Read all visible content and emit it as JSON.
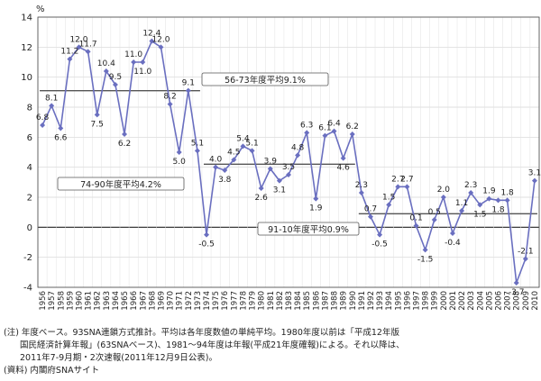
{
  "chart_data": {
    "type": "line",
    "ylabel": "%",
    "ylim": [
      -4,
      14
    ],
    "yticks": [
      -4,
      -2,
      0,
      2,
      4,
      6,
      8,
      10,
      12,
      14
    ],
    "grid": true,
    "x": [
      "1956",
      "1957",
      "1958",
      "1959",
      "1960",
      "1961",
      "1962",
      "1963",
      "1964",
      "1965",
      "1966",
      "1967",
      "1968",
      "1969",
      "1970",
      "1971",
      "1972",
      "1973",
      "1974",
      "1975",
      "1976",
      "1977",
      "1978",
      "1979",
      "1980",
      "1981",
      "1982",
      "1983",
      "1984",
      "1985",
      "1986",
      "1987",
      "1988",
      "1989",
      "1990",
      "1991",
      "1992",
      "1993",
      "1994",
      "1995",
      "1996",
      "1997",
      "1998",
      "1999",
      "2000",
      "2001",
      "2002",
      "2003",
      "2004",
      "2005",
      "2006",
      "2007",
      "2008",
      "2009",
      "2010"
    ],
    "values": [
      6.8,
      8.1,
      6.6,
      11.2,
      12.0,
      11.7,
      7.5,
      10.4,
      9.5,
      6.2,
      11.0,
      11.0,
      12.4,
      12.0,
      8.2,
      5.0,
      9.1,
      5.1,
      -0.5,
      4.0,
      3.8,
      4.5,
      5.4,
      5.1,
      2.6,
      3.9,
      3.1,
      3.5,
      4.8,
      6.3,
      1.9,
      6.1,
      6.4,
      4.6,
      6.2,
      2.3,
      0.7,
      -0.5,
      1.5,
      2.7,
      2.7,
      0.1,
      -1.5,
      0.5,
      2.0,
      -0.4,
      1.1,
      2.3,
      1.5,
      1.9,
      1.8,
      1.8,
      -3.7,
      -2.1,
      3.1
    ],
    "data_labels": [
      "6.8",
      "8.1",
      "6.6",
      "11.2",
      "12.0",
      "11.7",
      "7.5",
      "10.4",
      "9.5",
      "6.2",
      "11.0",
      "11.0",
      "12.4",
      "12.0",
      "8.2",
      "5.0",
      "9.1",
      "5.1",
      "-0.5",
      "4.0",
      "3.8",
      "4.5",
      "5.4",
      "5.1",
      "2.6",
      "3.9",
      "3.1",
      "3.5",
      "4.8",
      "6.3",
      "1.9",
      "6.1",
      "6.4",
      "4.6",
      "6.2",
      "2.3",
      "0.7",
      "-0.5",
      "1.5",
      "2.7",
      "2.7",
      "0.1",
      "-1.5",
      "0.5",
      "2.0",
      "-0.4",
      "1.1",
      "2.3",
      "1.5",
      "1.9",
      "1.8",
      "1.8",
      "-3.7",
      "-2.1",
      "3.1"
    ],
    "averages": [
      {
        "label": "56-73年度平均9.1%",
        "value": 9.1,
        "from": "1956",
        "to": "1973"
      },
      {
        "label": "74-90年度平均4.2%",
        "value": 4.2,
        "from": "1974",
        "to": "1990"
      },
      {
        "label": "91-10年度平均0.9%",
        "value": 0.9,
        "from": "1991",
        "to": "2010"
      }
    ],
    "colors": {
      "line": "#6a6fc0",
      "marker": "#6a6fc0",
      "avg": "#555555",
      "grid": "#d4d4d4"
    }
  },
  "notes": [
    "(注) 年度ベース。93SNA連鎖方式推計。平均は各年度数値の単純平均。1980年度以前は「平成12年版",
    "国民経済計算年報」(63SNAベース)、1981～94年度は年報(平成21年度確報)による。それ以降は、",
    "2011年7-9月期・2次速報(2011年12月9日公表)。",
    "(資料) 内閣府SNAサイト"
  ]
}
